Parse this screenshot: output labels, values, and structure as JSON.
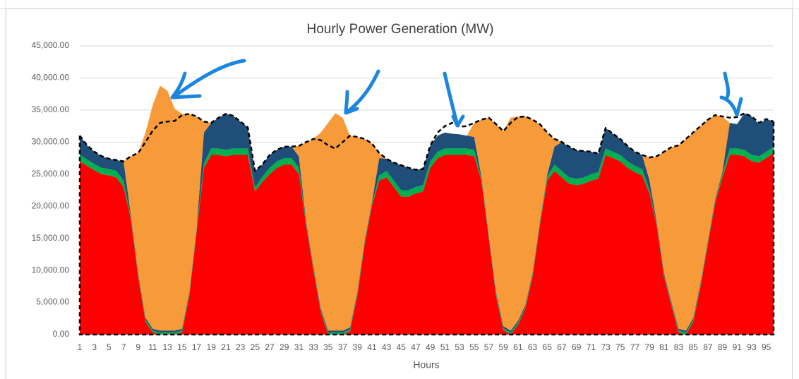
{
  "chart_data": {
    "type": "stacked-area",
    "title": "Hourly Power Generation (MW)",
    "x_label": "Hours",
    "categories": [
      1,
      null,
      3,
      null,
      5,
      null,
      7,
      null,
      9,
      null,
      11,
      null,
      13,
      null,
      15,
      null,
      17,
      null,
      19,
      null,
      21,
      null,
      23,
      null,
      25,
      null,
      27,
      null,
      29,
      null,
      31,
      null,
      33,
      null,
      35,
      null,
      37,
      null,
      39,
      null,
      41,
      null,
      43,
      null,
      45,
      null,
      47,
      null,
      49,
      null,
      51,
      null,
      53,
      null,
      55,
      null,
      57,
      null,
      59,
      null,
      61,
      null,
      63,
      null,
      65,
      null,
      67,
      null,
      69,
      null,
      71,
      null,
      73,
      null,
      75,
      null,
      77,
      null,
      79,
      null,
      81,
      null,
      83,
      null,
      85,
      null,
      87,
      null,
      89,
      null,
      91,
      null,
      93,
      null,
      95,
      null
    ],
    "series": [
      {
        "color": "#ff0000",
        "values": [
          27000,
          26300,
          25600,
          25000,
          24800,
          24500,
          23000,
          18000,
          9000,
          2000,
          300,
          0,
          0,
          0,
          300,
          6000,
          16000,
          26000,
          28000,
          28000,
          27800,
          28000,
          28000,
          28000,
          22300,
          23800,
          25000,
          26000,
          26500,
          26500,
          25000,
          17000,
          10000,
          3500,
          0,
          0,
          0,
          500,
          6000,
          14000,
          20000,
          24000,
          24500,
          23000,
          21500,
          21500,
          22000,
          22300,
          26000,
          27500,
          28000,
          28000,
          28000,
          28000,
          27800,
          24000,
          15000,
          6000,
          700,
          0,
          1500,
          4000,
          9000,
          17000,
          24000,
          25500,
          24500,
          23500,
          23300,
          23500,
          24000,
          24300,
          28000,
          27500,
          27000,
          26000,
          25300,
          24800,
          22000,
          17000,
          9000,
          4500,
          300,
          0,
          2000,
          7500,
          14000,
          20500,
          24500,
          28000,
          28000,
          27800,
          27000,
          26800,
          27500,
          28300
        ]
      },
      {
        "color": "#00b050",
        "values": [
          1000,
          1000,
          1000,
          1000,
          1000,
          1000,
          1000,
          300,
          300,
          300,
          300,
          300,
          300,
          300,
          300,
          300,
          300,
          700,
          1000,
          1000,
          1000,
          1000,
          1000,
          1000,
          600,
          800,
          1000,
          1000,
          1000,
          1000,
          1000,
          300,
          300,
          300,
          300,
          300,
          300,
          300,
          300,
          300,
          300,
          800,
          1000,
          1000,
          1000,
          1000,
          1000,
          1000,
          1000,
          1000,
          1000,
          1000,
          1000,
          1000,
          1000,
          300,
          300,
          300,
          300,
          300,
          300,
          300,
          300,
          300,
          600,
          1000,
          1000,
          1000,
          1000,
          1000,
          1000,
          1000,
          1000,
          1000,
          1000,
          1000,
          1000,
          1000,
          600,
          300,
          300,
          300,
          300,
          300,
          300,
          300,
          300,
          300,
          600,
          1000,
          1000,
          1000,
          1000,
          1000,
          1000,
          1000
        ]
      },
      {
        "color": "#1f4e79",
        "values": [
          3000,
          2200,
          1900,
          1800,
          1600,
          1700,
          3000,
          300,
          300,
          300,
          300,
          300,
          300,
          300,
          300,
          300,
          300,
          4800,
          4000,
          4800,
          5600,
          5100,
          4200,
          3300,
          2600,
          1900,
          2000,
          1800,
          1800,
          1800,
          1800,
          300,
          300,
          300,
          300,
          300,
          300,
          300,
          300,
          300,
          300,
          2700,
          1900,
          2800,
          3900,
          3500,
          2700,
          2500,
          2500,
          2500,
          2500,
          2300,
          2200,
          2000,
          2000,
          300,
          300,
          300,
          300,
          300,
          300,
          300,
          300,
          300,
          300,
          2800,
          4500,
          4800,
          4400,
          4100,
          3500,
          2900,
          3200,
          2800,
          2500,
          2400,
          2200,
          2200,
          1500,
          300,
          300,
          300,
          300,
          300,
          300,
          300,
          300,
          300,
          300,
          4000,
          3800,
          5700,
          6000,
          5000,
          5100,
          3900
        ]
      },
      {
        "color": "#f79a3a",
        "values": [
          0,
          0,
          0,
          0,
          0,
          0,
          0,
          9200,
          18700,
          28900,
          34900,
          38200,
          37400,
          34600,
          33500,
          27800,
          17400,
          1700,
          0,
          0,
          0,
          0,
          0,
          0,
          0,
          0,
          0,
          0,
          0,
          0,
          1600,
          12400,
          19900,
          27400,
          32400,
          33900,
          33200,
          29900,
          24200,
          15900,
          9200,
          800,
          0,
          0,
          0,
          0,
          0,
          0,
          0,
          0,
          0,
          0,
          0,
          0,
          2200,
          8900,
          18200,
          26200,
          30400,
          33200,
          31900,
          29400,
          23900,
          15200,
          6600,
          1200,
          0,
          0,
          0,
          0,
          0,
          0,
          0,
          0,
          0,
          0,
          0,
          0,
          3500,
          10200,
          18900,
          24100,
          28600,
          29900,
          28900,
          24400,
          18900,
          13100,
          8600,
          0,
          0,
          0,
          0,
          0,
          0,
          0
        ]
      }
    ],
    "demand": {
      "color": "#000000",
      "values": [
        31000,
        29500,
        28500,
        27800,
        27400,
        27200,
        27000,
        27800,
        28300,
        30000,
        31800,
        33000,
        33200,
        33300,
        34200,
        34400,
        34000,
        33200,
        33000,
        33800,
        34400,
        34100,
        33200,
        32300,
        25500,
        26500,
        28000,
        28800,
        29300,
        29300,
        29400,
        30000,
        30500,
        30300,
        29500,
        29000,
        30000,
        31000,
        30800,
        30500,
        29800,
        28300,
        27400,
        26800,
        26400,
        26000,
        25700,
        25800,
        29500,
        31500,
        32500,
        33000,
        32400,
        32500,
        33000,
        33500,
        33800,
        32800,
        31700,
        33000,
        33900,
        34000,
        33500,
        32800,
        31500,
        30500,
        30000,
        29300,
        28700,
        28600,
        28500,
        28200,
        32200,
        31300,
        30500,
        29400,
        28500,
        28000,
        27600,
        27800,
        28500,
        29200,
        29500,
        30500,
        31500,
        32500,
        33500,
        34200,
        34000,
        33800,
        33900,
        34500,
        34000,
        33000,
        33600,
        33200
      ]
    },
    "ylim": [
      0,
      45000
    ],
    "yticks": [
      {
        "value": 0,
        "label": "0.00"
      },
      {
        "value": 5000,
        "label": "5,000.00"
      },
      {
        "value": 10000,
        "label": "10,000.00"
      },
      {
        "value": 15000,
        "label": "15,000.00"
      },
      {
        "value": 20000,
        "label": "20,000.00"
      },
      {
        "value": 25000,
        "label": "25,000.00"
      },
      {
        "value": 30000,
        "label": "30,000.00"
      },
      {
        "value": 35000,
        "label": "35,000.00"
      },
      {
        "value": 40000,
        "label": "40,000.00"
      },
      {
        "value": 45000,
        "label": "45,000.00"
      }
    ],
    "grid": true
  }
}
